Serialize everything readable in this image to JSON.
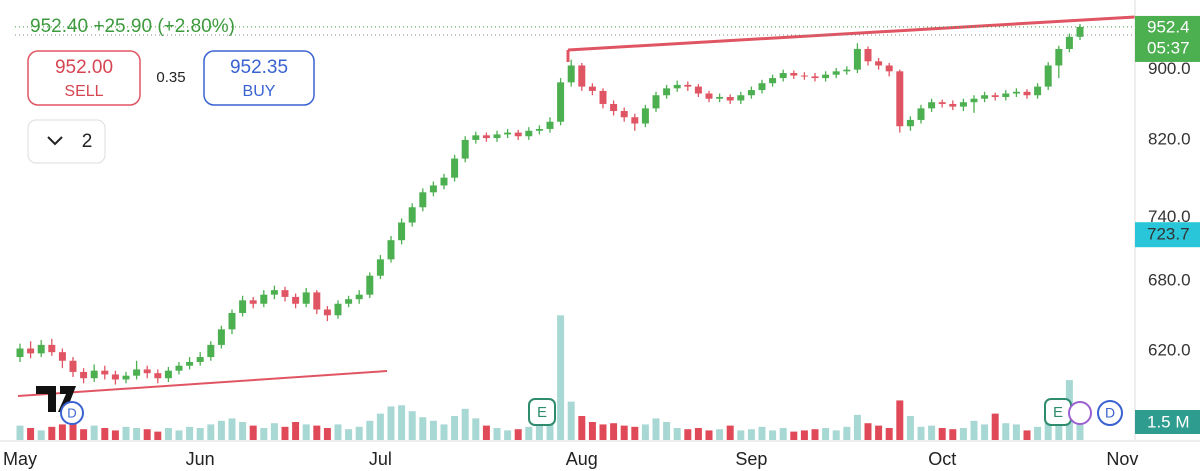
{
  "header": {
    "quote": "952.40 +25.90 (+2.80%)",
    "sell_price": "952.00",
    "sell_label": "SELL",
    "spread": "0.35",
    "buy_price": "952.35",
    "buy_label": "BUY",
    "count": "2"
  },
  "chart_data": {
    "type": "candlestick",
    "categories": [
      "May",
      null,
      null,
      null,
      null,
      null,
      null,
      null,
      null,
      null,
      null,
      null,
      null,
      null,
      null,
      null,
      null,
      "Jun",
      null,
      null,
      null,
      null,
      null,
      null,
      null,
      null,
      null,
      null,
      null,
      null,
      null,
      null,
      null,
      null,
      "Jul",
      null,
      null,
      null,
      null,
      null,
      null,
      null,
      null,
      null,
      null,
      null,
      null,
      null,
      null,
      null,
      null,
      null,
      null,
      "Aug",
      null,
      null,
      null,
      null,
      null,
      null,
      null,
      null,
      null,
      null,
      null,
      null,
      null,
      null,
      null,
      "Sep",
      null,
      null,
      null,
      null,
      null,
      null,
      null,
      null,
      null,
      null,
      null,
      null,
      null,
      null,
      null,
      null,
      null,
      "Oct",
      null,
      null,
      null,
      null,
      null,
      null,
      null,
      null,
      null,
      null,
      null,
      null,
      null,
      null,
      null,
      null,
      "Nov"
    ],
    "open": [
      615,
      622,
      618,
      625,
      619,
      612,
      603,
      598,
      604,
      601,
      597,
      600,
      605,
      602,
      598,
      604,
      608,
      611,
      615,
      625,
      638,
      652,
      663,
      660,
      668,
      672,
      666,
      660,
      670,
      655,
      650,
      660,
      664,
      668,
      685,
      700,
      718,
      735,
      750,
      765,
      772,
      780,
      800,
      820,
      825,
      822,
      826,
      828,
      824,
      830,
      832,
      840,
      885,
      905,
      880,
      875,
      860,
      852,
      845,
      838,
      855,
      870,
      878,
      882,
      880,
      872,
      866,
      868,
      864,
      870,
      876,
      884,
      890,
      896,
      893,
      892,
      890,
      894,
      898,
      900,
      925,
      910,
      905,
      898,
      835,
      842,
      855,
      862,
      860,
      857,
      862,
      866,
      870,
      868,
      872,
      874,
      870,
      880,
      905,
      925,
      940,
      null,
      null,
      null,
      null
    ],
    "high": [
      626,
      628,
      629,
      630,
      622,
      615,
      606,
      609,
      608,
      604,
      603,
      612,
      608,
      605,
      607,
      611,
      615,
      619,
      628,
      641,
      655,
      667,
      666,
      672,
      676,
      675,
      669,
      674,
      672,
      658,
      663,
      667,
      672,
      688,
      704,
      722,
      739,
      754,
      769,
      776,
      784,
      804,
      824,
      829,
      828,
      830,
      832,
      831,
      834,
      836,
      845,
      890,
      912,
      908,
      884,
      878,
      864,
      856,
      849,
      859,
      874,
      882,
      887,
      886,
      883,
      875,
      872,
      871,
      874,
      880,
      888,
      894,
      900,
      899,
      897,
      896,
      898,
      902,
      904,
      932,
      928,
      914,
      908,
      900,
      846,
      859,
      866,
      865,
      864,
      866,
      870,
      874,
      873,
      876,
      878,
      877,
      884,
      909,
      929,
      944,
      956,
      null,
      null,
      null,
      null
    ],
    "low": [
      611,
      614,
      615,
      616,
      606,
      599,
      594,
      595,
      597,
      593,
      594,
      597,
      598,
      594,
      595,
      601,
      605,
      608,
      612,
      622,
      634,
      649,
      656,
      657,
      664,
      662,
      656,
      657,
      651,
      645,
      647,
      657,
      660,
      665,
      682,
      697,
      714,
      731,
      746,
      761,
      768,
      776,
      796,
      816,
      818,
      818,
      822,
      820,
      820,
      826,
      828,
      836,
      880,
      875,
      870,
      855,
      847,
      840,
      830,
      834,
      851,
      866,
      874,
      875,
      868,
      862,
      862,
      860,
      860,
      866,
      872,
      880,
      886,
      889,
      888,
      886,
      886,
      890,
      894,
      896,
      905,
      900,
      892,
      828,
      830,
      838,
      851,
      856,
      853,
      852,
      850,
      862,
      864,
      864,
      868,
      866,
      866,
      876,
      890,
      921,
      936,
      null,
      null,
      null,
      null
    ],
    "close": [
      622,
      618,
      625,
      619,
      612,
      603,
      598,
      604,
      601,
      597,
      600,
      605,
      602,
      598,
      604,
      608,
      611,
      615,
      625,
      638,
      652,
      663,
      660,
      668,
      672,
      666,
      660,
      670,
      655,
      650,
      660,
      664,
      668,
      685,
      700,
      718,
      735,
      750,
      765,
      772,
      780,
      800,
      820,
      825,
      822,
      826,
      828,
      824,
      830,
      832,
      840,
      885,
      905,
      880,
      875,
      860,
      852,
      845,
      838,
      855,
      870,
      878,
      882,
      880,
      872,
      866,
      868,
      864,
      870,
      876,
      884,
      890,
      896,
      893,
      892,
      890,
      894,
      898,
      900,
      925,
      910,
      905,
      898,
      835,
      842,
      855,
      862,
      860,
      857,
      862,
      866,
      870,
      868,
      872,
      874,
      870,
      880,
      905,
      925,
      940,
      952.4,
      null,
      null,
      null,
      null
    ],
    "volume": [
      1.2,
      1.0,
      0.8,
      1.1,
      1.3,
      1.5,
      0.9,
      1.2,
      1.0,
      0.8,
      1.1,
      1.0,
      0.9,
      0.7,
      1.0,
      0.8,
      1.1,
      1.0,
      1.3,
      1.6,
      1.8,
      1.5,
      1.2,
      1.0,
      1.4,
      1.1,
      1.5,
      1.3,
      1.2,
      1.0,
      1.3,
      0.9,
      1.1,
      1.6,
      2.2,
      2.8,
      2.9,
      2.4,
      1.9,
      1.6,
      1.3,
      2.0,
      2.6,
      1.8,
      1.2,
      1.0,
      0.8,
      0.9,
      1.1,
      1.2,
      1.6,
      10.4,
      3.2,
      2.0,
      1.5,
      1.3,
      1.4,
      1.2,
      1.1,
      1.3,
      1.8,
      1.5,
      1.0,
      0.9,
      1.0,
      0.8,
      0.9,
      1.2,
      0.8,
      0.9,
      1.1,
      0.8,
      1.0,
      0.7,
      0.8,
      0.9,
      1.0,
      0.8,
      1.1,
      2.1,
      1.4,
      1.2,
      1.0,
      3.3,
      2.0,
      1.1,
      1.2,
      1.0,
      0.9,
      1.0,
      1.6,
      1.3,
      2.2,
      1.4,
      1.3,
      0.8,
      1.1,
      1.6,
      2.0,
      5.0,
      1.5,
      null,
      null,
      null,
      null
    ],
    "ylim": [
      551,
      987
    ],
    "log_scale": true,
    "grid": false,
    "yticks": [
      {
        "value": 620,
        "label": "620.0"
      },
      {
        "value": 680,
        "label": "680.0"
      },
      {
        "value": 740,
        "label": "740.0"
      },
      {
        "value": 820,
        "label": "820.0"
      },
      {
        "value": 900,
        "label": "900.0"
      }
    ],
    "volume_lim": [
      0,
      36.7
    ],
    "up_color": "#4caf50",
    "down_color": "#e05563",
    "volume_up_color": "#a8d8d4",
    "volume_down_color": "#e04a58",
    "last_price": 952.4,
    "last_time": "05:37",
    "indicator_price": 723.7,
    "volume_label": "1.5 M",
    "events": [
      "D",
      "E",
      "E",
      "D"
    ]
  }
}
